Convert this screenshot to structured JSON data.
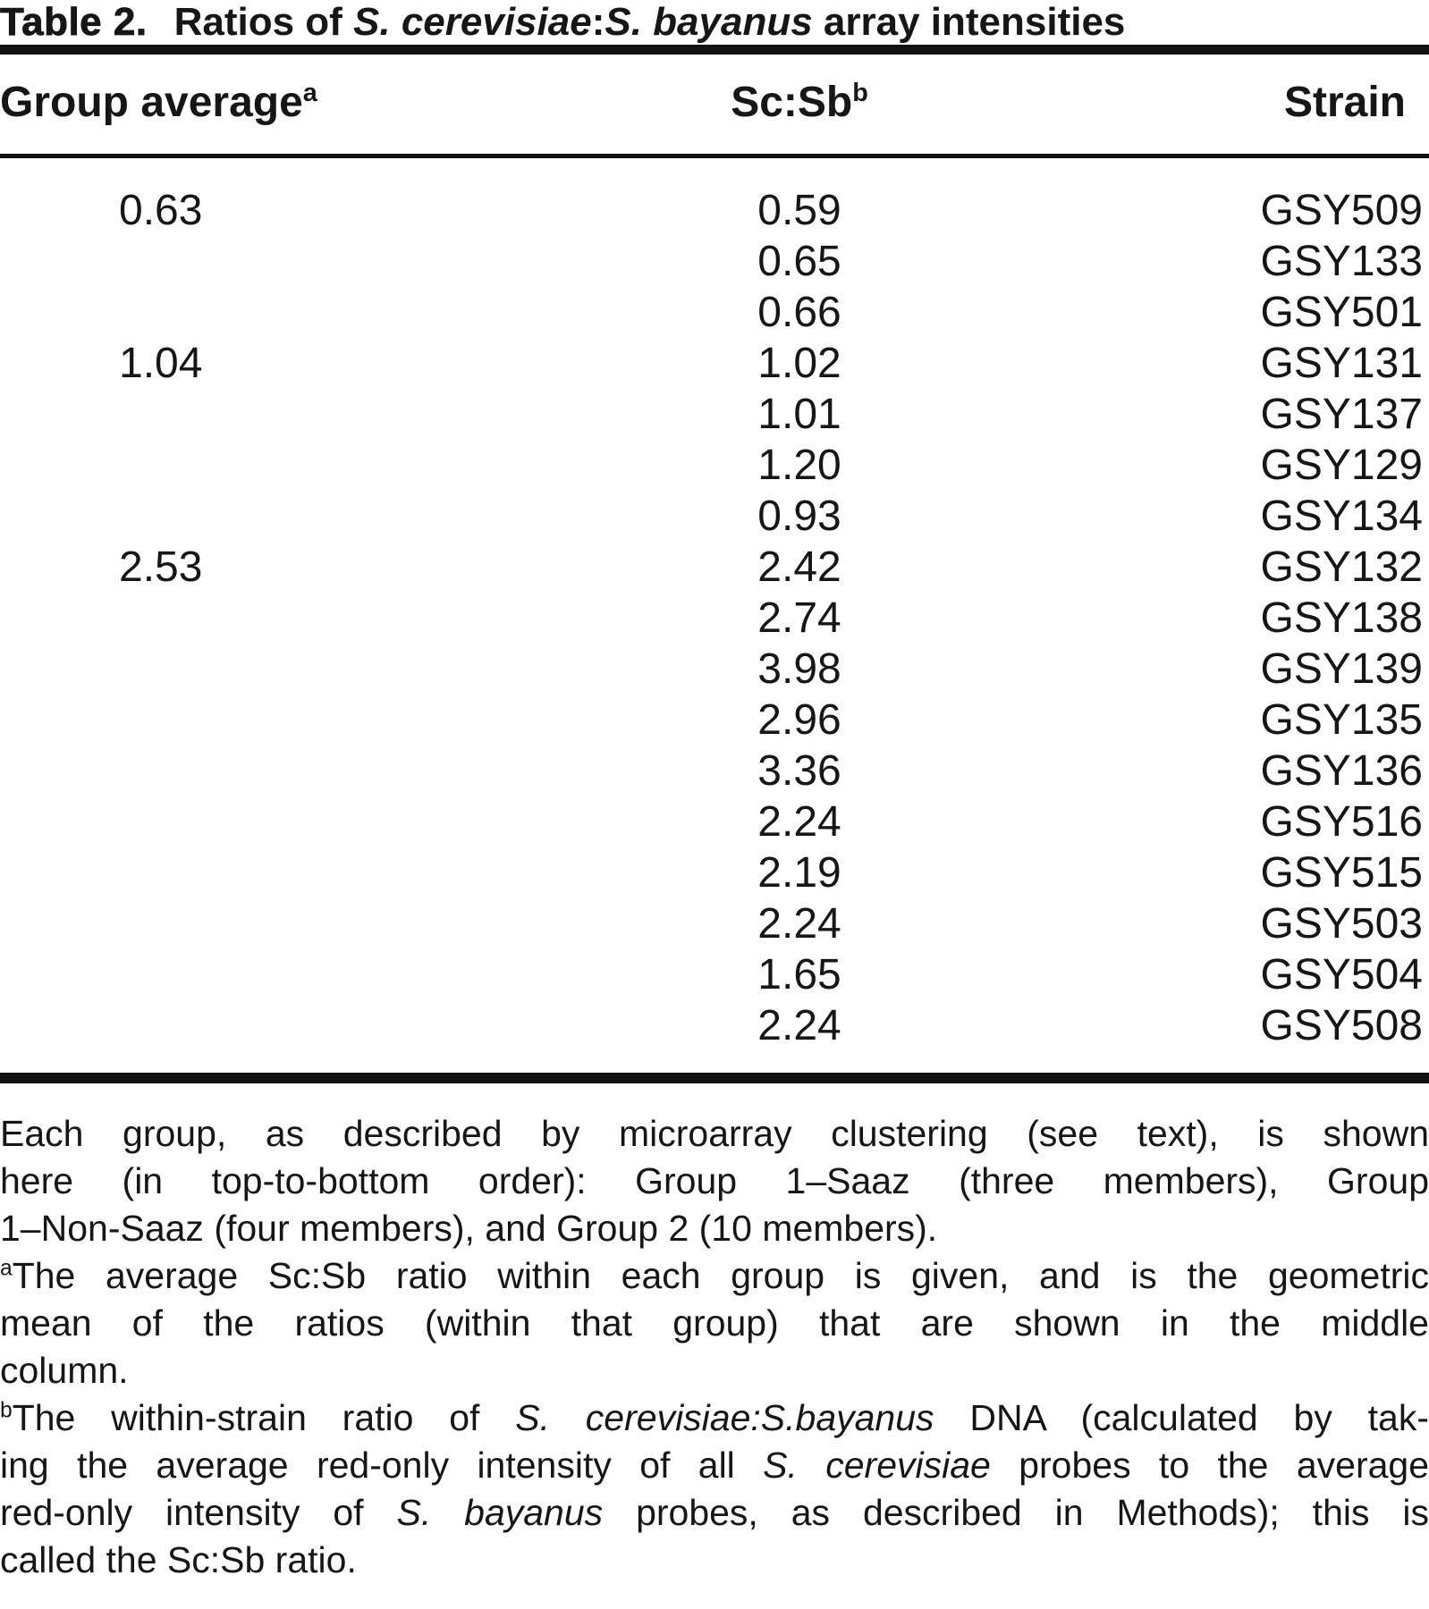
{
  "title": {
    "segments": [
      {
        "t": "Table 2.",
        "heavy": true
      },
      {
        "t": "Ratios of "
      },
      {
        "t": "S. cerevisiae",
        "i": true
      },
      {
        "t": ":"
      },
      {
        "t": "S. bayanus",
        "i": true
      },
      {
        "t": " array intensities"
      }
    ]
  },
  "table": {
    "headers": [
      {
        "name": "group-average",
        "segments": [
          {
            "t": "Group average"
          },
          {
            "t": "a",
            "sup": true
          }
        ]
      },
      {
        "name": "sc-sb-ratio",
        "segments": [
          {
            "t": "Sc:Sb"
          },
          {
            "t": "b",
            "sup": true
          }
        ]
      },
      {
        "name": "strain",
        "segments": [
          {
            "t": "Strain"
          }
        ]
      }
    ],
    "rows": [
      {
        "group_average": "0.63",
        "sc_sb": "0.59",
        "strain": "GSY509"
      },
      {
        "group_average": "",
        "sc_sb": "0.65",
        "strain": "GSY133"
      },
      {
        "group_average": "",
        "sc_sb": "0.66",
        "strain": "GSY501"
      },
      {
        "group_average": "1.04",
        "sc_sb": "1.02",
        "strain": "GSY131"
      },
      {
        "group_average": "",
        "sc_sb": "1.01",
        "strain": "GSY137"
      },
      {
        "group_average": "",
        "sc_sb": "1.20",
        "strain": "GSY129"
      },
      {
        "group_average": "",
        "sc_sb": "0.93",
        "strain": "GSY134"
      },
      {
        "group_average": "2.53",
        "sc_sb": "2.42",
        "strain": "GSY132"
      },
      {
        "group_average": "",
        "sc_sb": "2.74",
        "strain": "GSY138"
      },
      {
        "group_average": "",
        "sc_sb": "3.98",
        "strain": "GSY139"
      },
      {
        "group_average": "",
        "sc_sb": "2.96",
        "strain": "GSY135"
      },
      {
        "group_average": "",
        "sc_sb": "3.36",
        "strain": "GSY136"
      },
      {
        "group_average": "",
        "sc_sb": "2.24",
        "strain": "GSY516"
      },
      {
        "group_average": "",
        "sc_sb": "2.19",
        "strain": "GSY515"
      },
      {
        "group_average": "",
        "sc_sb": "2.24",
        "strain": "GSY503"
      },
      {
        "group_average": "",
        "sc_sb": "1.65",
        "strain": "GSY504"
      },
      {
        "group_average": "",
        "sc_sb": "2.24",
        "strain": "GSY508"
      }
    ]
  },
  "footnotes": {
    "paragraphs": [
      {
        "lines": [
          {
            "justify": true,
            "segments": [
              {
                "t": "Each group, as described by microarray clustering (see text), is shown"
              }
            ]
          },
          {
            "justify": true,
            "segments": [
              {
                "t": "here (in top-to-bottom order): Group 1–Saaz (three members), Group"
              }
            ]
          },
          {
            "justify": false,
            "segments": [
              {
                "t": "1–Non-Saaz (four members), and Group 2 (10 members)."
              }
            ]
          }
        ]
      },
      {
        "lines": [
          {
            "justify": true,
            "segments": [
              {
                "t": "a",
                "sup": true
              },
              {
                "t": "The average Sc:Sb ratio within each group is given, and is the geometric"
              }
            ]
          },
          {
            "justify": true,
            "segments": [
              {
                "t": "mean of the ratios (within that group) that are shown in the middle"
              }
            ]
          },
          {
            "justify": false,
            "segments": [
              {
                "t": "column."
              }
            ]
          }
        ]
      },
      {
        "lines": [
          {
            "justify": true,
            "segments": [
              {
                "t": "b",
                "sup": true
              },
              {
                "t": "The within-strain ratio of "
              },
              {
                "t": "S. cerevisiae:S.bayanus",
                "i": true
              },
              {
                "t": " DNA (calculated by tak-"
              }
            ]
          },
          {
            "justify": true,
            "segments": [
              {
                "t": "ing the average red-only intensity of all "
              },
              {
                "t": "S. cerevisiae",
                "i": true
              },
              {
                "t": " probes to the average"
              }
            ]
          },
          {
            "justify": true,
            "segments": [
              {
                "t": "red-only intensity of "
              },
              {
                "t": "S. bayanus",
                "i": true
              },
              {
                "t": " probes, as described in Methods); this is"
              }
            ]
          },
          {
            "justify": false,
            "segments": [
              {
                "t": "called the Sc:Sb ratio."
              }
            ]
          }
        ]
      }
    ]
  },
  "colors": {
    "text": "#161616",
    "rule": "#111111",
    "background": "#ffffff"
  }
}
